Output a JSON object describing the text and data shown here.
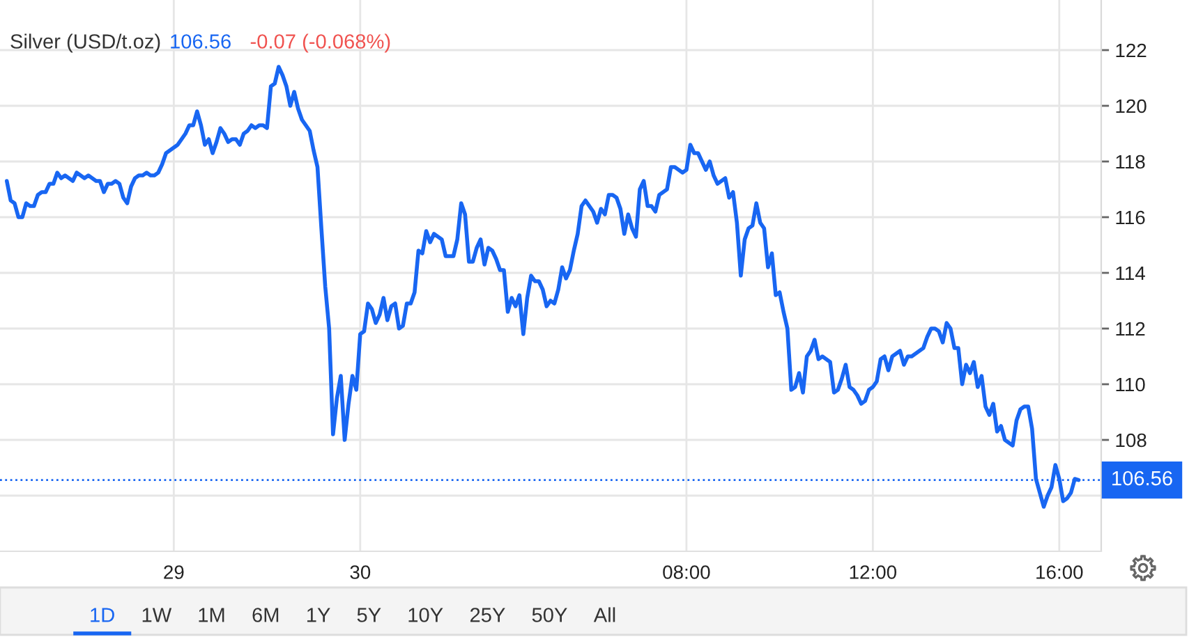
{
  "chart_data": {
    "type": "line",
    "title": "Silver (USD/t.oz)",
    "annotations": [
      "106.56",
      "-0.07 (-0.068%)",
      "1D",
      "1W",
      "1M",
      "6M",
      "1Y",
      "5Y",
      "10Y",
      "25Y",
      "50Y",
      "All"
    ],
    "color": "#1866f2",
    "line_style": "solid",
    "grid": true,
    "ylim": [
      104,
      123.8
    ],
    "yticks": [
      {
        "value": 106,
        "label": null
      },
      108,
      110,
      112,
      114,
      116,
      118,
      120,
      122
    ],
    "ref_lines": [
      {
        "axis": "y",
        "value": 106.56,
        "label": "106.56",
        "color": "#1866f2",
        "line_style": "dotted"
      }
    ],
    "categories": [
      null,
      null,
      null,
      null,
      null,
      null,
      null,
      null,
      null,
      null,
      null,
      null,
      null,
      null,
      null,
      null,
      null,
      null,
      null,
      null,
      null,
      null,
      null,
      null,
      null,
      null,
      null,
      null,
      null,
      null,
      null,
      null,
      null,
      null,
      null,
      null,
      null,
      null,
      null,
      null,
      null,
      null,
      null,
      "29",
      null,
      null,
      null,
      null,
      null,
      null,
      null,
      null,
      null,
      null,
      null,
      null,
      null,
      null,
      null,
      null,
      null,
      null,
      null,
      null,
      null,
      null,
      null,
      null,
      null,
      null,
      null,
      null,
      null,
      null,
      null,
      null,
      null,
      null,
      null,
      null,
      null,
      null,
      null,
      null,
      null,
      null,
      null,
      null,
      null,
      null,
      null,
      "30",
      null,
      null,
      null,
      null,
      null,
      null,
      null,
      null,
      null,
      null,
      null,
      null,
      null,
      null,
      null,
      null,
      null,
      null,
      null,
      null,
      null,
      null,
      null,
      null,
      null,
      null,
      null,
      null,
      null,
      null,
      null,
      null,
      null,
      null,
      null,
      null,
      null,
      null,
      null,
      null,
      null,
      null,
      null,
      null,
      null,
      null,
      null,
      null,
      null,
      null,
      null,
      null,
      null,
      null,
      null,
      null,
      null,
      null,
      null,
      null,
      null,
      null,
      null,
      null,
      null,
      null,
      null,
      null,
      null,
      null,
      null,
      null,
      null,
      null,
      null,
      null,
      null,
      null,
      null,
      null,
      null,
      null,
      null,
      "08:00",
      null,
      null,
      null,
      null,
      null,
      null,
      null,
      null,
      null,
      null,
      null,
      null,
      null,
      null,
      null,
      null,
      null,
      null,
      null,
      null,
      null,
      null,
      null,
      null,
      null,
      null,
      null,
      null,
      null,
      null,
      null,
      null,
      null,
      null,
      null,
      null,
      null,
      null,
      null,
      null,
      null,
      null,
      null,
      null,
      null,
      null,
      null,
      "12:00",
      null,
      null,
      null,
      null,
      null,
      null,
      null,
      null,
      null,
      null,
      null,
      null,
      null,
      null,
      null,
      null,
      null,
      null,
      null,
      null,
      null,
      null,
      null,
      null,
      null,
      null,
      null,
      null,
      null,
      null,
      null,
      null,
      null,
      null,
      null,
      null,
      null,
      null,
      null,
      null,
      null,
      null,
      null,
      null,
      null,
      null,
      null,
      "16:00",
      null,
      null,
      null,
      null,
      null
    ],
    "values": [
      117.3,
      116.6,
      116.5,
      116.0,
      116.0,
      116.5,
      116.4,
      116.4,
      116.8,
      116.9,
      116.9,
      117.2,
      117.2,
      117.6,
      117.4,
      117.5,
      117.4,
      117.3,
      117.6,
      117.5,
      117.4,
      117.5,
      117.4,
      117.3,
      117.3,
      116.9,
      117.2,
      117.2,
      117.3,
      117.2,
      116.7,
      116.5,
      117.1,
      117.4,
      117.5,
      117.5,
      117.6,
      117.5,
      117.5,
      117.6,
      117.9,
      118.3,
      118.4,
      118.5,
      118.6,
      118.8,
      119.0,
      119.3,
      119.3,
      119.8,
      119.3,
      118.6,
      118.8,
      118.3,
      118.7,
      119.2,
      119.0,
      118.7,
      118.8,
      118.8,
      118.6,
      119.0,
      119.1,
      119.3,
      119.2,
      119.3,
      119.3,
      119.2,
      120.7,
      120.8,
      121.4,
      121.1,
      120.7,
      120.0,
      120.5,
      119.9,
      119.5,
      119.3,
      119.1,
      118.4,
      117.8,
      115.6,
      113.5,
      112.0,
      108.2,
      109.5,
      110.3,
      108.0,
      109.3,
      110.3,
      109.8,
      111.8,
      111.9,
      112.9,
      112.7,
      112.2,
      112.5,
      113.1,
      112.3,
      112.8,
      112.9,
      112.0,
      112.1,
      112.9,
      112.9,
      113.3,
      114.8,
      114.7,
      115.5,
      115.1,
      115.4,
      115.3,
      115.2,
      114.6,
      114.6,
      114.6,
      115.2,
      116.5,
      116.1,
      114.4,
      114.4,
      114.9,
      115.2,
      114.3,
      114.9,
      114.8,
      114.5,
      114.1,
      114.1,
      112.6,
      113.1,
      112.8,
      113.2,
      111.8,
      113.1,
      113.9,
      113.7,
      113.7,
      113.4,
      112.8,
      113.0,
      112.9,
      113.4,
      114.2,
      113.8,
      114.1,
      114.8,
      115.4,
      116.4,
      116.6,
      116.4,
      116.2,
      115.8,
      116.3,
      116.1,
      116.8,
      116.8,
      116.7,
      116.3,
      115.4,
      116.1,
      115.6,
      115.3,
      117.0,
      117.3,
      116.4,
      116.4,
      116.2,
      116.8,
      116.9,
      117.0,
      117.8,
      117.8,
      117.7,
      117.6,
      117.7,
      118.6,
      118.3,
      118.3,
      118.0,
      117.7,
      118.0,
      117.5,
      117.2,
      117.3,
      117.4,
      116.7,
      116.9,
      115.8,
      113.9,
      115.2,
      115.6,
      115.7,
      116.5,
      115.8,
      115.6,
      114.2,
      114.7,
      113.2,
      113.3,
      112.6,
      112.0,
      109.8,
      109.9,
      110.4,
      109.7,
      111.0,
      111.2,
      111.6,
      110.9,
      111.0,
      110.9,
      110.8,
      109.7,
      109.8,
      110.2,
      110.7,
      109.9,
      109.8,
      109.6,
      109.3,
      109.4,
      109.8,
      109.9,
      110.1,
      110.9,
      111.0,
      110.5,
      111.0,
      111.1,
      111.2,
      110.7,
      111.0,
      111.0,
      111.1,
      111.2,
      111.3,
      111.7,
      112.0,
      112.0,
      111.9,
      111.5,
      112.2,
      112.0,
      111.3,
      111.3,
      110.0,
      110.7,
      110.4,
      110.8,
      109.9,
      110.3,
      109.2,
      108.9,
      109.3,
      108.3,
      108.5,
      108.0,
      107.9,
      107.8,
      108.7,
      109.1,
      109.2,
      109.2,
      108.4,
      106.6,
      106.1,
      105.6,
      106.0,
      106.3,
      107.1,
      106.6,
      105.8,
      105.9,
      106.1,
      106.6,
      106.56
    ]
  }
}
